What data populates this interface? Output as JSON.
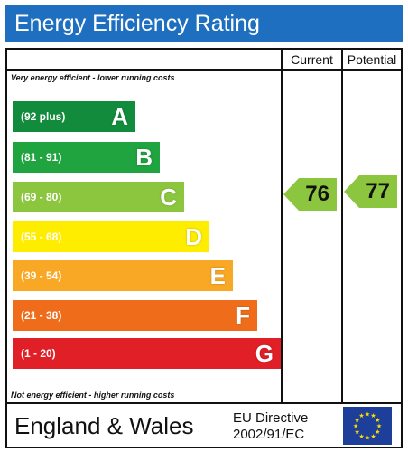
{
  "title": "Energy Efficiency Rating",
  "columns": {
    "current": "Current",
    "potential": "Potential"
  },
  "captions": {
    "top": "Very energy efficient - lower running costs",
    "bottom": "Not energy efficient - higher running costs"
  },
  "bands": [
    {
      "letter": "A",
      "range": "(92 plus)",
      "color": "#128b3c"
    },
    {
      "letter": "B",
      "range": "(81 - 91)",
      "color": "#1fa43f"
    },
    {
      "letter": "C",
      "range": "(69 - 80)",
      "color": "#8cc63f"
    },
    {
      "letter": "D",
      "range": "(55 - 68)",
      "color": "#ffed00"
    },
    {
      "letter": "E",
      "range": "(39 - 54)",
      "color": "#f9a825"
    },
    {
      "letter": "F",
      "range": "(21 - 38)",
      "color": "#ef6c1a"
    },
    {
      "letter": "G",
      "range": "(1 - 20)",
      "color": "#e01f26"
    }
  ],
  "current_rating": {
    "value": "76",
    "band": "C",
    "color": "#8cc63f"
  },
  "potential_rating": {
    "value": "77",
    "band": "C",
    "color": "#8cc63f"
  },
  "footer": {
    "region": "England & Wales",
    "directive_line1": "EU Directive",
    "directive_line2": "2002/91/EC",
    "flag_icon": "eu-flag-icon",
    "flag_color": "#1d3f9a",
    "star_color": "#ffdd00"
  }
}
